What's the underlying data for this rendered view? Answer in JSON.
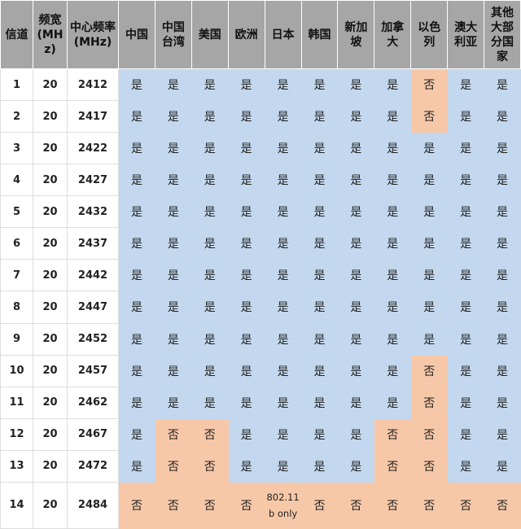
{
  "table": {
    "header": [
      "信道",
      "频宽(MHz)",
      "中心频率(MHz)",
      "中国",
      "中国台湾",
      "美国",
      "欧洲",
      "日本",
      "韩国",
      "新加坡",
      "加拿大",
      "以色列",
      "澳大利亚",
      "其他大部分国家"
    ],
    "rows": [
      [
        "1",
        "20",
        "2412",
        "是",
        "是",
        "是",
        "是",
        "是",
        "是",
        "是",
        "是",
        "否",
        "是",
        "是"
      ],
      [
        "2",
        "20",
        "2417",
        "是",
        "是",
        "是",
        "是",
        "是",
        "是",
        "是",
        "是",
        "否",
        "是",
        "是"
      ],
      [
        "3",
        "20",
        "2422",
        "是",
        "是",
        "是",
        "是",
        "是",
        "是",
        "是",
        "是",
        "是",
        "是",
        "是"
      ],
      [
        "4",
        "20",
        "2427",
        "是",
        "是",
        "是",
        "是",
        "是",
        "是",
        "是",
        "是",
        "是",
        "是",
        "是"
      ],
      [
        "5",
        "20",
        "2432",
        "是",
        "是",
        "是",
        "是",
        "是",
        "是",
        "是",
        "是",
        "是",
        "是",
        "是"
      ],
      [
        "6",
        "20",
        "2437",
        "是",
        "是",
        "是",
        "是",
        "是",
        "是",
        "是",
        "是",
        "是",
        "是",
        "是"
      ],
      [
        "7",
        "20",
        "2442",
        "是",
        "是",
        "是",
        "是",
        "是",
        "是",
        "是",
        "是",
        "是",
        "是",
        "是"
      ],
      [
        "8",
        "20",
        "2447",
        "是",
        "是",
        "是",
        "是",
        "是",
        "是",
        "是",
        "是",
        "是",
        "是",
        "是"
      ],
      [
        "9",
        "20",
        "2452",
        "是",
        "是",
        "是",
        "是",
        "是",
        "是",
        "是",
        "是",
        "是",
        "是",
        "是"
      ],
      [
        "10",
        "20",
        "2457",
        "是",
        "是",
        "是",
        "是",
        "是",
        "是",
        "是",
        "是",
        "否",
        "是",
        "是"
      ],
      [
        "11",
        "20",
        "2462",
        "是",
        "是",
        "是",
        "是",
        "是",
        "是",
        "是",
        "是",
        "否",
        "是",
        "是"
      ],
      [
        "12",
        "20",
        "2467",
        "是",
        "否",
        "否",
        "是",
        "是",
        "是",
        "是",
        "否",
        "否",
        "是",
        "是"
      ],
      [
        "13",
        "20",
        "2472",
        "是",
        "否",
        "否",
        "是",
        "是",
        "是",
        "是",
        "否",
        "否",
        "是",
        "是"
      ],
      [
        "14",
        "20",
        "2484",
        "否",
        "否",
        "否",
        "否",
        "802.11 b only",
        "否",
        "否",
        "否",
        "否",
        "否",
        "否"
      ]
    ],
    "cell_fills": {
      "是": "#c3d8ee",
      "否": "#f7c8a8",
      "802.11 b only": "#f7c8a8"
    }
  }
}
